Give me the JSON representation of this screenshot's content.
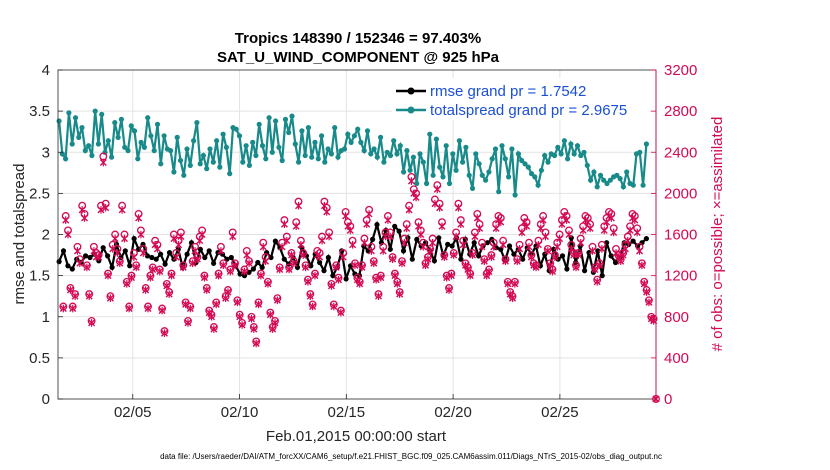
{
  "chart_data": {
    "type": "line",
    "title": "Tropics 148390 / 152346 = 97.403%",
    "subtitle": "SAT_U_WIND_COMPONENT @ 925 hPa",
    "xlabel": "Feb.01,2015 00:00:00 start",
    "ylabel_left": "rmse and totalspread",
    "ylabel_right": "# of obs: o=possible; ×=assimilated",
    "x_unit": "days since Feb 01 00:00",
    "xlim": [
      0.5,
      28.5
    ],
    "ylim_left": [
      0,
      4
    ],
    "ylim_right": [
      0,
      3200
    ],
    "x_ticks": [
      4,
      9,
      14,
      19,
      24
    ],
    "x_tick_labels": [
      "02/05",
      "02/10",
      "02/15",
      "02/20",
      "02/25"
    ],
    "y_ticks_left": [
      "0",
      "0.5",
      "1",
      "1.5",
      "2",
      "2.5",
      "3",
      "3.5",
      "4"
    ],
    "y_ticks_right": [
      "0",
      "400",
      "800",
      "1200",
      "1600",
      "2000",
      "2400",
      "2800",
      "3200"
    ],
    "legend": [
      "rmse grand pr = 1.7542",
      "totalspread grand pr = 2.9675"
    ],
    "footer": "data file: /Users/raeder/DAI/ATM_forcXX/CAM6_setup/f.e21.FHIST_BGC.f09_025.CAM6assim.011/Diags_NTrS_2015-02/obs_diag_output.nc",
    "series": [
      {
        "name": "rmse",
        "axis": "left",
        "color": "#000000",
        "marker": "dot",
        "values": [
          1.67,
          1.8,
          1.62,
          1.58,
          1.7,
          1.66,
          1.74,
          1.72,
          1.76,
          1.68,
          1.84,
          1.74,
          1.6,
          1.88,
          1.72,
          1.8,
          1.62,
          1.95,
          1.82,
          1.88,
          1.74,
          1.72,
          1.7,
          1.76,
          1.64,
          1.78,
          1.7,
          1.82,
          1.6,
          1.76,
          1.9,
          1.66,
          1.82,
          1.72,
          1.8,
          1.65,
          1.78,
          1.76,
          1.7,
          1.72,
          1.62,
          1.52,
          1.5,
          1.54,
          1.58,
          1.66,
          1.6,
          1.78,
          1.72,
          1.92,
          1.84,
          1.7,
          1.64,
          1.72,
          1.6,
          1.84,
          1.74,
          1.62,
          1.76,
          1.66,
          1.56,
          1.72,
          1.5,
          1.6,
          1.8,
          1.46,
          1.62,
          1.52,
          1.5,
          1.86,
          1.8,
          1.94,
          2.12,
          1.9,
          2.05,
          1.82,
          2.1,
          2.04,
          1.8,
          1.96,
          1.7,
          1.94,
          1.86,
          1.9,
          1.8,
          1.68,
          1.96,
          1.74,
          1.88,
          1.86,
          1.96,
          1.7,
          1.94,
          1.76,
          1.9,
          1.74,
          1.86,
          1.9,
          1.94,
          1.84,
          1.82,
          1.68,
          1.86,
          1.76,
          1.82,
          1.7,
          1.84,
          1.76,
          1.86,
          1.62,
          1.76,
          1.56,
          1.82,
          1.7,
          1.74,
          1.58,
          1.96,
          1.66,
          1.86,
          1.56,
          1.78,
          1.54,
          1.8,
          1.5,
          1.9,
          1.74,
          1.66,
          1.72,
          1.9,
          1.88,
          1.92,
          1.86,
          1.9,
          1.95
        ]
      },
      {
        "name": "totalspread",
        "axis": "left",
        "color": "#188a8a",
        "marker": "dot",
        "values": [
          3.38,
          2.98,
          2.92,
          3.48,
          3.1,
          3.42,
          3.18,
          3.3,
          3.02,
          3.08,
          2.96,
          3.5,
          3.1,
          3.46,
          3.0,
          3.14,
          2.94,
          3.36,
          3.18,
          3.4,
          3.06,
          3.02,
          3.32,
          3.26,
          2.92,
          3.12,
          3.06,
          3.42,
          3.2,
          3.02,
          3.34,
          2.86,
          3.2,
          3.04,
          3.02,
          2.76,
          3.18,
          2.9,
          2.72,
          3.04,
          2.84,
          3.14,
          3.36,
          2.86,
          2.96,
          2.8,
          3.04,
          2.88,
          3.14,
          2.82,
          3.22,
          3.06,
          2.74,
          3.3,
          3.28,
          3.2,
          2.88,
          3.08,
          2.84,
          3.12,
          2.96,
          3.34,
          3.08,
          2.92,
          3.42,
          3.0,
          3.38,
          3.06,
          2.9,
          3.4,
          3.24,
          3.44,
          3.1,
          2.88,
          3.26,
          2.96,
          3.3,
          2.94,
          3.12,
          2.92,
          3.2,
          2.88,
          3.04,
          2.98,
          3.3,
          2.94,
          3.02,
          3.04,
          3.22,
          3.12,
          3.2,
          3.28,
          3.12,
          3.02,
          3.26,
          2.98,
          3.04,
          2.94,
          3.18,
          2.88,
          3.0,
          2.96,
          3.14,
          2.98,
          3.08,
          2.76,
          3.02,
          2.78,
          2.94,
          2.62,
          2.98,
          2.88,
          2.62,
          3.22,
          2.72,
          3.16,
          2.82,
          2.7,
          3.08,
          2.62,
          2.98,
          2.78,
          3.14,
          2.88,
          3.06,
          2.72,
          2.56,
          2.98,
          2.86,
          2.72,
          2.66,
          2.76,
          2.92,
          3.04,
          2.52,
          3.08,
          2.92,
          2.7,
          3.04,
          2.48,
          2.98,
          2.9,
          2.86,
          2.82,
          2.74,
          2.7,
          2.6,
          2.78,
          2.96,
          2.88,
          2.98,
          2.96,
          3.06,
          2.98,
          3.14,
          2.92,
          3.1,
          2.98,
          3.08,
          2.96,
          3.0,
          2.84,
          2.66,
          2.76,
          2.58,
          2.72,
          2.66,
          2.62,
          2.66,
          2.7,
          2.72,
          2.68,
          2.58,
          2.76,
          2.62,
          2.6,
          2.98,
          3.0,
          2.6,
          3.1
        ]
      },
      {
        "name": "obs possible",
        "axis": "right",
        "color": "#d40a55",
        "marker": "o",
        "x_step": 0.25,
        "x_start": 0.75,
        "values": [
          900,
          1780,
          1640,
          1080,
          900,
          1020,
          1480,
          1360,
          1880,
          1800,
          1300,
          1020,
          760,
          1480,
          1420,
          1400,
          1880,
          2360,
          1900,
          1220,
          1000,
          1500,
          1600,
          1460,
          1340,
          1880,
          1600,
          1140,
          900,
          1200,
          1420,
          1300,
          1800,
          1640,
          1460,
          1080,
          900,
          1200,
          1280,
          1540,
          1500,
          1260,
          880,
          660,
          1120,
          1040,
          1220,
          1600,
          1420,
          1540,
          1620,
          1300,
          940,
          760,
          900,
          1340,
          1480,
          1380,
          1580,
          1640,
          1200,
          1080,
          860,
          820,
          700,
          940,
          1220,
          1480,
          1320,
          1000,
          1060,
          1260,
          1620,
          1320,
          960,
          820,
          740,
          1260,
          1440,
          1340,
          800,
          700,
          560,
          940,
          1220,
          1520,
          1380,
          1140,
          840,
          700,
          760,
          980,
          1280,
          1520,
          1740,
          1580,
          1280,
          1420,
          1340,
          1720,
          1920,
          1540,
          1420,
          1300,
          1160,
          1020,
          920,
          1220,
          1440,
          1420,
          1580,
          1920,
          1860,
          1620,
          1120,
          920,
          1300,
          1180,
          860,
          1420,
          1820,
          1720,
          1680,
          1540,
          1320,
          1180,
          1140,
          1300,
          1560,
          1740,
          1840,
          1480,
          1340,
          1180,
          1020,
          1200,
          1480,
          1620,
          1780,
          1620,
          1380,
          1220,
          1140,
          1040,
          1340,
          1560,
          1700,
          1880,
          2160,
          2040,
          2000,
          1720,
          1640,
          1520,
          1320,
          1380,
          1460,
          1560,
          1940,
          2080,
          1900,
          1720,
          1400,
          1200,
          1080,
          1220,
          1420,
          1620,
          1900,
          1740,
          1540,
          1320,
          1280,
          1220,
          1420,
          1620,
          1800,
          1700,
          1520,
          1360,
          1220,
          1260,
          1400,
          1520,
          1700,
          1780,
          1760,
          1540,
          1360,
          1140,
          1040,
          1000,
          1140,
          1360,
          1500,
          1660,
          1760,
          1720,
          1520,
          1400,
          1320,
          1300,
          1540,
          1700,
          1780,
          1620,
          1460,
          1320,
          1260,
          1400,
          1520,
          1600,
          1740,
          1820,
          1780,
          1640,
          1500,
          1420,
          1300,
          1420,
          1560,
          1680,
          1780,
          1760,
          1700,
          1480,
          1280,
          1160,
          1320,
          1500,
          1680,
          1760,
          1820,
          1800,
          1660,
          1460,
          1400,
          1360,
          1420,
          1500,
          1580,
          1680,
          1800,
          1780,
          1660,
          1480,
          1320,
          1140,
          1060,
          960,
          800,
          780,
          0
        ]
      },
      {
        "name": "obs assimilated",
        "axis": "right",
        "color": "#d40a55",
        "marker": "x",
        "x_step": 0.25,
        "x_start": 0.75,
        "values": [
          880,
          1740,
          1600,
          1060,
          880,
          1000,
          1440,
          1320,
          1840,
          1760,
          1280,
          1000,
          740,
          1440,
          1380,
          1380,
          1840,
          2300,
          1860,
          1200,
          980,
          1460,
          1560,
          1420,
          1320,
          1840,
          1560,
          1120,
          880,
          1180,
          1380,
          1280,
          1760,
          1600,
          1420,
          1060,
          880,
          1180,
          1260,
          1500,
          1460,
          1240,
          860,
          640,
          1100,
          1020,
          1200,
          1560,
          1380,
          1500,
          1580,
          1280,
          920,
          740,
          880,
          1320,
          1440,
          1360,
          1540,
          1600,
          1180,
          1060,
          840,
          800,
          680,
          920,
          1200,
          1440,
          1300,
          980,
          1040,
          1240,
          1580,
          1300,
          940,
          800,
          720,
          1240,
          1400,
          1320,
          780,
          680,
          540,
          920,
          1200,
          1480,
          1340,
          1120,
          820,
          680,
          740,
          960,
          1260,
          1480,
          1700,
          1540,
          1260,
          1400,
          1320,
          1680,
          1880,
          1500,
          1400,
          1280,
          1140,
          1000,
          900,
          1200,
          1400,
          1380,
          1540,
          1880,
          1820,
          1580,
          1100,
          900,
          1280,
          1160,
          840,
          1380,
          1780,
          1680,
          1640,
          1500,
          1300,
          1160,
          1120,
          1280,
          1520,
          1700,
          1800,
          1440,
          1320,
          1160,
          1000,
          1180,
          1440,
          1580,
          1740,
          1580,
          1360,
          1200,
          1120,
          1020,
          1320,
          1520,
          1660,
          1840,
          2120,
          2000,
          1960,
          1680,
          1600,
          1480,
          1300,
          1360,
          1440,
          1520,
          1900,
          2040,
          1860,
          1680,
          1380,
          1180,
          1060,
          1200,
          1400,
          1580,
          1860,
          1700,
          1500,
          1300,
          1260,
          1200,
          1400,
          1580,
          1760,
          1660,
          1480,
          1340,
          1200,
          1240,
          1380,
          1480,
          1660,
          1740,
          1720,
          1500,
          1340,
          1120,
          1020,
          980,
          1120,
          1340,
          1460,
          1620,
          1720,
          1680,
          1480,
          1380,
          1300,
          1280,
          1500,
          1660,
          1740,
          1580,
          1440,
          1300,
          1240,
          1380,
          1480,
          1560,
          1700,
          1780,
          1740,
          1600,
          1460,
          1400,
          1280,
          1400,
          1520,
          1640,
          1740,
          1720,
          1660,
          1440,
          1260,
          1140,
          1300,
          1460,
          1640,
          1720,
          1780,
          1760,
          1620,
          1420,
          1380,
          1340,
          1400,
          1460,
          1540,
          1640,
          1760,
          1740,
          1620,
          1440,
          1300,
          1120,
          1040,
          940,
          780,
          760,
          0
        ]
      }
    ]
  }
}
